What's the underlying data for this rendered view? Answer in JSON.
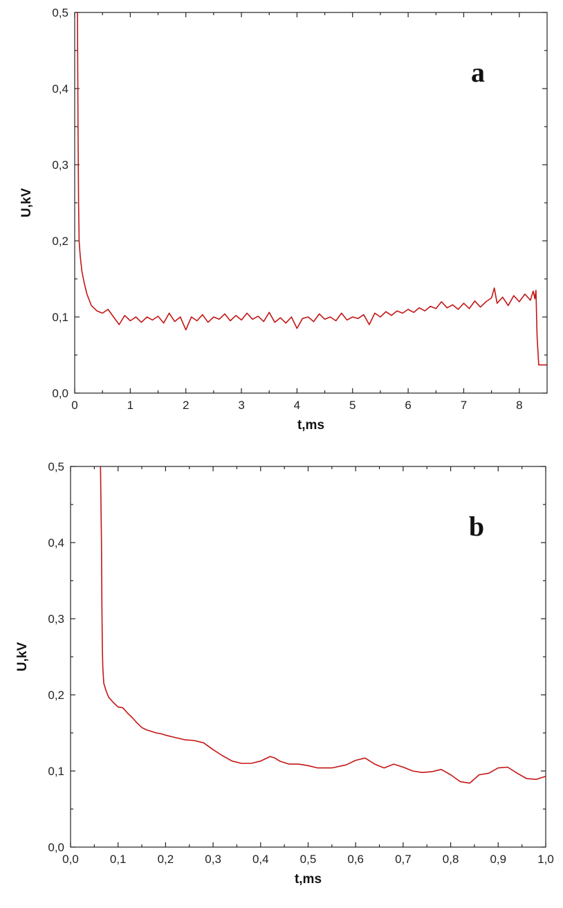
{
  "chart_data": [
    {
      "type": "line",
      "panel_label": "a",
      "xlabel": "t,ms",
      "ylabel": "U,kV",
      "xlim": [
        0,
        8.5
      ],
      "ylim": [
        0,
        0.5
      ],
      "x_ticks": [
        "0",
        "1",
        "2",
        "3",
        "4",
        "5",
        "6",
        "7",
        "8"
      ],
      "y_ticks": [
        "0,0",
        "0,1",
        "0,2",
        "0,3",
        "0,4",
        "0,5"
      ],
      "grid": false,
      "series_color": "#c41414",
      "series": [
        {
          "x": [
            0.05,
            0.06,
            0.07,
            0.08,
            0.1,
            0.13,
            0.17,
            0.22,
            0.3,
            0.4,
            0.5,
            0.6,
            0.7,
            0.8,
            0.9,
            1.0,
            1.1,
            1.2,
            1.3,
            1.4,
            1.5,
            1.6,
            1.7,
            1.8,
            1.9,
            2.0,
            2.1,
            2.2,
            2.3,
            2.4,
            2.5,
            2.6,
            2.7,
            2.8,
            2.9,
            3.0,
            3.1,
            3.2,
            3.3,
            3.4,
            3.5,
            3.6,
            3.7,
            3.8,
            3.9,
            4.0,
            4.1,
            4.2,
            4.3,
            4.4,
            4.5,
            4.6,
            4.7,
            4.8,
            4.9,
            5.0,
            5.1,
            5.2,
            5.3,
            5.4,
            5.5,
            5.6,
            5.7,
            5.8,
            5.9,
            6.0,
            6.1,
            6.2,
            6.3,
            6.4,
            6.5,
            6.6,
            6.7,
            6.8,
            6.9,
            7.0,
            7.1,
            7.2,
            7.3,
            7.4,
            7.5,
            7.55,
            7.6,
            7.7,
            7.8,
            7.9,
            8.0,
            8.1,
            8.2,
            8.25,
            8.28,
            8.3,
            8.32,
            8.35,
            8.4,
            8.5
          ],
          "y": [
            0.5,
            0.35,
            0.25,
            0.2,
            0.18,
            0.16,
            0.145,
            0.13,
            0.115,
            0.108,
            0.105,
            0.11,
            0.1,
            0.09,
            0.102,
            0.095,
            0.1,
            0.093,
            0.1,
            0.096,
            0.101,
            0.092,
            0.105,
            0.094,
            0.1,
            0.083,
            0.1,
            0.095,
            0.103,
            0.093,
            0.1,
            0.097,
            0.104,
            0.095,
            0.102,
            0.096,
            0.105,
            0.097,
            0.101,
            0.094,
            0.106,
            0.093,
            0.099,
            0.092,
            0.1,
            0.085,
            0.098,
            0.1,
            0.094,
            0.104,
            0.097,
            0.1,
            0.095,
            0.105,
            0.096,
            0.1,
            0.098,
            0.103,
            0.09,
            0.105,
            0.1,
            0.107,
            0.102,
            0.108,
            0.105,
            0.11,
            0.106,
            0.112,
            0.108,
            0.114,
            0.111,
            0.12,
            0.112,
            0.116,
            0.11,
            0.118,
            0.111,
            0.121,
            0.113,
            0.12,
            0.125,
            0.138,
            0.118,
            0.126,
            0.115,
            0.128,
            0.12,
            0.13,
            0.122,
            0.134,
            0.124,
            0.135,
            0.075,
            0.037,
            0.037,
            0.037
          ]
        }
      ]
    },
    {
      "type": "line",
      "panel_label": "b",
      "xlabel": "t,ms",
      "ylabel": "U,kV",
      "xlim": [
        0,
        1.0
      ],
      "ylim": [
        0,
        0.5
      ],
      "x_ticks": [
        "0,0",
        "0,1",
        "0,2",
        "0,3",
        "0,4",
        "0,5",
        "0,6",
        "0,7",
        "0,8",
        "0,9",
        "1,0"
      ],
      "y_ticks": [
        "0,0",
        "0,1",
        "0,2",
        "0,3",
        "0,4",
        "0,5"
      ],
      "grid": false,
      "series_color": "#c41414",
      "series": [
        {
          "x": [
            0.063,
            0.065,
            0.066,
            0.067,
            0.068,
            0.07,
            0.075,
            0.08,
            0.09,
            0.1,
            0.11,
            0.12,
            0.13,
            0.14,
            0.15,
            0.16,
            0.17,
            0.18,
            0.19,
            0.2,
            0.22,
            0.24,
            0.26,
            0.28,
            0.3,
            0.32,
            0.34,
            0.36,
            0.38,
            0.4,
            0.42,
            0.43,
            0.44,
            0.46,
            0.48,
            0.5,
            0.52,
            0.55,
            0.58,
            0.6,
            0.62,
            0.64,
            0.66,
            0.68,
            0.7,
            0.72,
            0.74,
            0.76,
            0.78,
            0.8,
            0.82,
            0.84,
            0.86,
            0.88,
            0.9,
            0.92,
            0.94,
            0.96,
            0.98,
            1.0
          ],
          "y": [
            0.5,
            0.4,
            0.32,
            0.26,
            0.235,
            0.215,
            0.205,
            0.197,
            0.19,
            0.184,
            0.183,
            0.176,
            0.17,
            0.163,
            0.157,
            0.154,
            0.152,
            0.15,
            0.149,
            0.147,
            0.144,
            0.141,
            0.14,
            0.137,
            0.128,
            0.12,
            0.113,
            0.11,
            0.11,
            0.113,
            0.119,
            0.117,
            0.113,
            0.109,
            0.109,
            0.107,
            0.104,
            0.104,
            0.108,
            0.114,
            0.117,
            0.109,
            0.104,
            0.109,
            0.105,
            0.1,
            0.098,
            0.099,
            0.102,
            0.095,
            0.086,
            0.084,
            0.095,
            0.097,
            0.104,
            0.105,
            0.097,
            0.09,
            0.089,
            0.093
          ]
        }
      ]
    }
  ]
}
